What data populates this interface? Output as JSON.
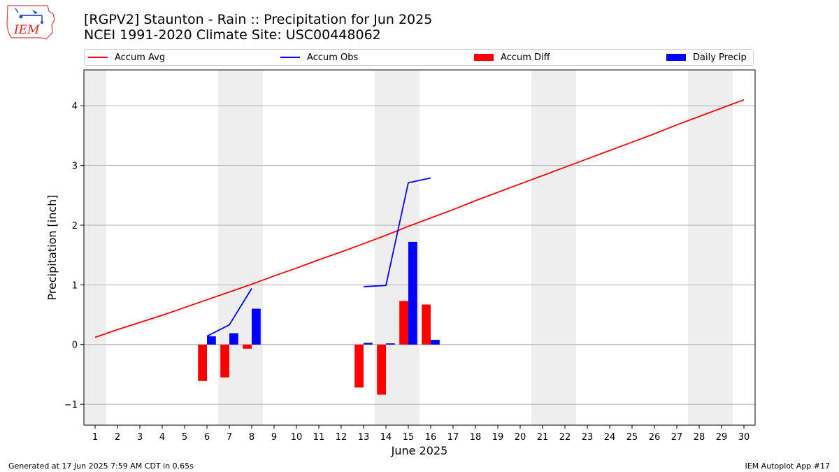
{
  "header": {
    "title_line1": "[RGPV2] Staunton - Rain :: Precipitation for Jun 2025",
    "title_line2": "NCEI 1991-2020 Climate Site: USC00448062"
  },
  "logo": {
    "text": "IEM"
  },
  "legend": {
    "items": [
      {
        "label": "Accum Avg",
        "color": "#ff0000",
        "kind": "line"
      },
      {
        "label": "Accum Obs",
        "color": "#0000ff",
        "kind": "line"
      },
      {
        "label": "Accum Diff",
        "color": "#ff0000",
        "kind": "bar"
      },
      {
        "label": "Daily Precip",
        "color": "#0000ff",
        "kind": "bar"
      }
    ]
  },
  "footer": {
    "left": "Generated at 17 Jun 2025 7:59 AM CDT in 0.65s",
    "right": "IEM Autoplot App #17"
  },
  "chart_data": {
    "type": "bar",
    "xlabel": "June 2025",
    "ylabel": "Precipitation [inch]",
    "xlim": [
      0.5,
      30.5
    ],
    "ylim": [
      -1.35,
      4.6
    ],
    "x": [
      1,
      2,
      3,
      4,
      5,
      6,
      7,
      8,
      9,
      10,
      11,
      12,
      13,
      14,
      15,
      16,
      17,
      18,
      19,
      20,
      21,
      22,
      23,
      24,
      25,
      26,
      27,
      28,
      29,
      30
    ],
    "yticks": [
      -1,
      0,
      1,
      2,
      3,
      4
    ],
    "ytick_labels": [
      "−1",
      "0",
      "1",
      "2",
      "3",
      "4"
    ],
    "grid": "horizontal",
    "weekend_shading_days": [
      [
        0.5,
        1.5
      ],
      [
        6.5,
        8.5
      ],
      [
        13.5,
        15.5
      ],
      [
        20.5,
        22.5
      ],
      [
        27.5,
        29.5
      ]
    ],
    "series": [
      {
        "name": "Accum Avg",
        "type": "line",
        "color": "#ff0000",
        "x": [
          1,
          2,
          3,
          4,
          5,
          6,
          7,
          8,
          9,
          10,
          11,
          12,
          13,
          14,
          15,
          16,
          17,
          18,
          19,
          20,
          21,
          22,
          23,
          24,
          25,
          26,
          27,
          28,
          29,
          30
        ],
        "values": [
          0.12,
          0.25,
          0.37,
          0.49,
          0.62,
          0.75,
          0.88,
          1.01,
          1.15,
          1.28,
          1.42,
          1.55,
          1.69,
          1.83,
          1.98,
          2.12,
          2.26,
          2.41,
          2.55,
          2.69,
          2.83,
          2.97,
          3.11,
          3.25,
          3.39,
          3.53,
          3.68,
          3.82,
          3.96,
          4.1
        ]
      },
      {
        "name": "Accum Obs",
        "type": "line",
        "color": "#0000ff",
        "segments": [
          {
            "x": [
              6,
              7,
              8
            ],
            "values": [
              0.14,
              0.33,
              0.94
            ]
          },
          {
            "x": [
              13,
              14,
              15,
              16
            ],
            "values": [
              0.97,
              0.99,
              2.71,
              2.79
            ]
          }
        ]
      },
      {
        "name": "Accum Diff",
        "type": "bar",
        "color": "#ff0000",
        "offset": -0.2,
        "x": [
          6,
          7,
          8,
          13,
          14,
          15,
          16
        ],
        "values": [
          -0.61,
          -0.55,
          -0.07,
          -0.72,
          -0.84,
          0.73,
          0.67
        ]
      },
      {
        "name": "Daily Precip",
        "type": "bar",
        "color": "#0000ff",
        "offset": 0.2,
        "x": [
          6,
          7,
          8,
          13,
          14,
          15,
          16
        ],
        "values": [
          0.14,
          0.19,
          0.6,
          0.03,
          0.02,
          1.72,
          0.08
        ]
      }
    ]
  }
}
